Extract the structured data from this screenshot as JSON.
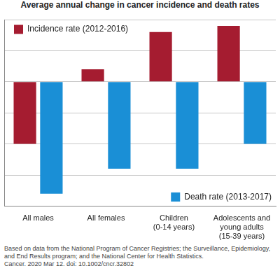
{
  "chart_data": {
    "type": "bar",
    "title": "Average annual change in cancer incidence and death rates",
    "categories": [
      "All males",
      "All females",
      "Children (0-14 years)",
      "Adolescents and young adults (15-39 years)"
    ],
    "series": [
      {
        "name": "Incidence rate (2012-2016)",
        "color": "#a51c30",
        "values": [
          -1.0,
          0.2,
          0.8,
          0.9
        ]
      },
      {
        "name": "Death rate (2013-2017)",
        "color": "#1a8fd6",
        "values": [
          -1.8,
          -1.4,
          -1.4,
          -1.0
        ]
      }
    ],
    "ylim": [
      -2,
      1
    ],
    "yticks": [
      -2,
      -1.5,
      -1,
      -0.5,
      0,
      0.5,
      1
    ],
    "grid": true,
    "tick_labels": "x",
    "notes": [
      "Based on data from the National Program of Cancer Registries; the Surveillance, Epidemiology, and End Results program; and the National Center for Health Statistics.",
      "Cancer. 2020 Mar 12. doi: 10.1002/cncr.32802"
    ]
  }
}
